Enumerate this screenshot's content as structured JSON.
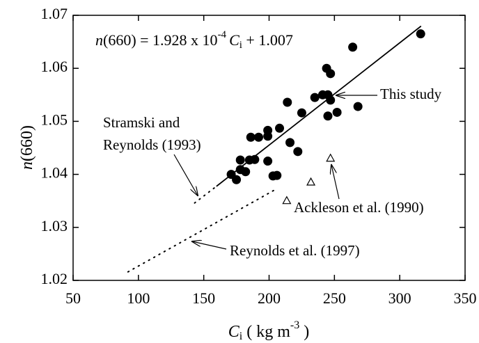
{
  "chart_data": {
    "type": "scatter",
    "equation": {
      "n": "n",
      "a": "(660) = 1.928 x 10",
      "exp": "-4",
      "c": "C",
      "sub": "i",
      "b": " + 1.007"
    },
    "annotations": {
      "this_study": "This study",
      "stramski_1": "Stramski and",
      "stramski_2": "Reynolds (1993)",
      "ackleson": "Ackleson et al. (1990)",
      "reynolds": "Reynolds et al. (1997)"
    },
    "y_label": {
      "n": "n",
      "rest": "(660)"
    },
    "x_label": {
      "c": "C",
      "sub": "i",
      "a": " ( kg m",
      "exp": "-3",
      "b": " )"
    },
    "xlim": [
      50,
      350
    ],
    "ylim": [
      1.02,
      1.07
    ],
    "xticks": [
      50,
      100,
      150,
      200,
      250,
      300,
      350
    ],
    "yticks": [
      1.02,
      1.03,
      1.04,
      1.05,
      1.06,
      1.07
    ],
    "series": [
      {
        "marker": "filled-circle",
        "color": "#000000",
        "x": [
          316,
          264,
          244,
          247,
          241,
          245,
          235,
          247,
          214,
          252,
          225,
          268,
          245,
          208,
          199,
          199,
          192,
          186,
          216,
          222,
          199,
          189,
          185,
          178,
          182,
          178,
          171,
          175,
          203,
          206
        ],
        "values": [
          1.0665,
          1.064,
          1.06,
          1.059,
          1.055,
          1.055,
          1.0545,
          1.054,
          1.0536,
          1.0517,
          1.0516,
          1.0528,
          1.051,
          1.0487,
          1.0483,
          1.0472,
          1.047,
          1.047,
          1.046,
          1.0443,
          1.0425,
          1.0428,
          1.0427,
          1.0427,
          1.0405,
          1.0409,
          1.04,
          1.039,
          1.0397,
          1.0398
        ]
      },
      {
        "marker": "open-triangle",
        "color": "#000000",
        "x": [
          213.5,
          232,
          247
        ],
        "values": [
          1.035,
          1.0385,
          1.043
        ]
      },
      {
        "marker": "line",
        "dash": "solid",
        "color": "#000000",
        "x": [
          160,
          316
        ],
        "values": [
          1.0378,
          1.0679
        ]
      },
      {
        "marker": "line",
        "dash": "dotted",
        "color": "#000000",
        "x": [
          143,
          160
        ],
        "values": [
          1.0346,
          1.0378
        ]
      },
      {
        "marker": "line",
        "dash": "dotted",
        "color": "#000000",
        "x": [
          92,
          206
        ],
        "values": [
          1.0216,
          1.0373
        ]
      }
    ]
  }
}
